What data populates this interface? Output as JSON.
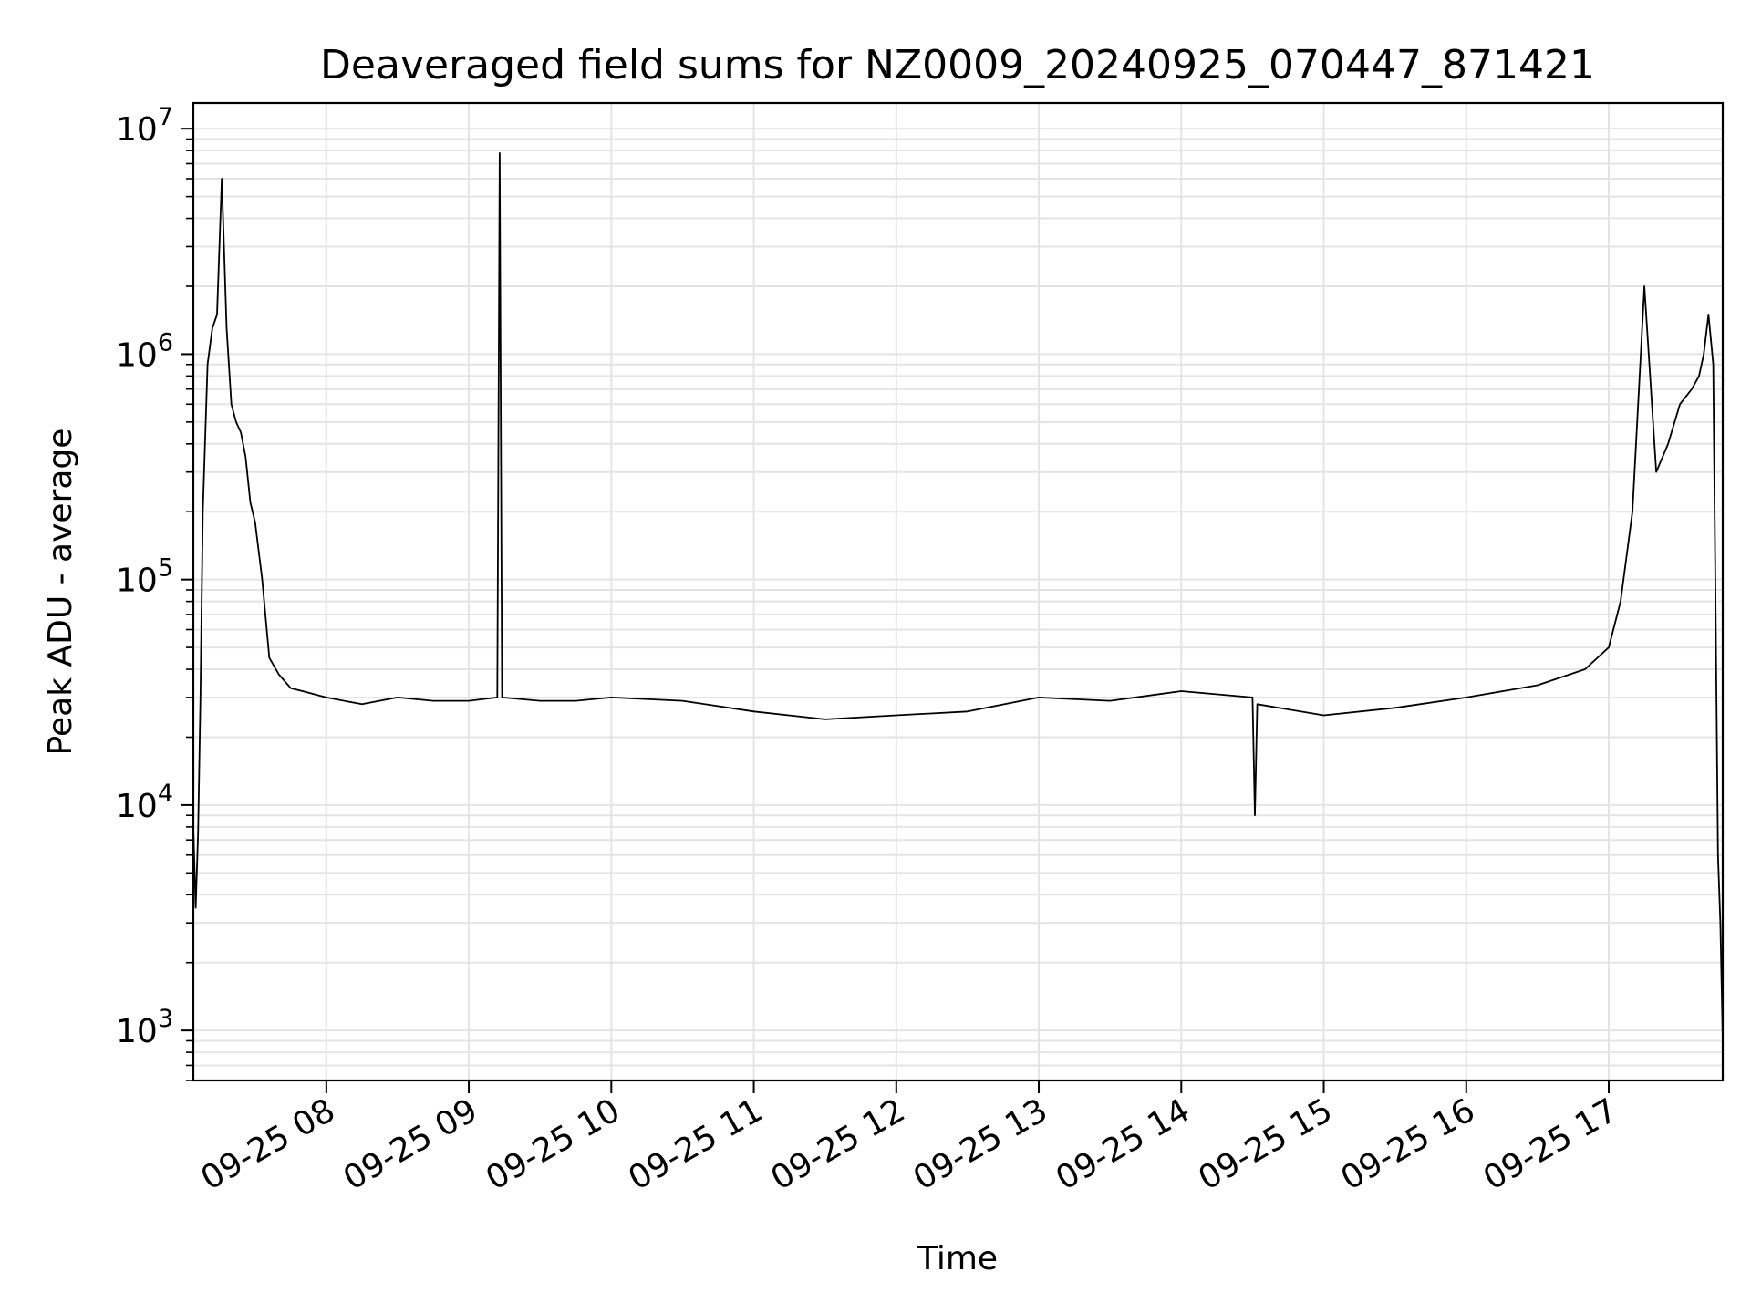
{
  "chart_data": {
    "type": "line",
    "title": "Deaveraged field sums for NZ0009_20240925_070447_871421",
    "xlabel": "Time",
    "ylabel": "Peak ADU - average",
    "yscale": "log",
    "xlim": [
      "2024-09-25 07:04",
      "2024-09-25 17:48"
    ],
    "ylim": [
      600,
      13000000
    ],
    "grid": true,
    "line_color": "#000000",
    "x_ticks": [
      "09-25 08",
      "09-25 09",
      "09-25 10",
      "09-25 11",
      "09-25 12",
      "09-25 13",
      "09-25 14",
      "09-25 15",
      "09-25 16",
      "09-25 17"
    ],
    "y_ticks": [
      {
        "base": "10",
        "exp": "3",
        "value": 1000
      },
      {
        "base": "10",
        "exp": "4",
        "value": 10000
      },
      {
        "base": "10",
        "exp": "5",
        "value": 100000
      },
      {
        "base": "10",
        "exp": "6",
        "value": 1000000
      },
      {
        "base": "10",
        "exp": "7",
        "value": 10000000
      }
    ],
    "series": [
      {
        "x": [
          "07:04",
          "07:05",
          "07:06",
          "07:07",
          "07:08",
          "07:10",
          "07:12",
          "07:14",
          "07:16",
          "07:18",
          "07:20",
          "07:22",
          "07:24",
          "07:26",
          "07:28",
          "07:30",
          "07:33",
          "07:36",
          "07:40",
          "07:45",
          "07:50",
          "08:00",
          "08:15",
          "08:30",
          "08:45",
          "09:00",
          "09:12",
          "09:13",
          "09:14",
          "09:30",
          "09:45",
          "10:00",
          "10:30",
          "11:00",
          "11:30",
          "12:00",
          "12:30",
          "13:00",
          "13:30",
          "14:00",
          "14:30",
          "14:31",
          "14:32",
          "15:00",
          "15:30",
          "16:00",
          "16:30",
          "16:50",
          "17:00",
          "17:05",
          "17:10",
          "17:15",
          "17:20",
          "17:25",
          "17:30",
          "17:35",
          "17:38",
          "17:40",
          "17:42",
          "17:44",
          "17:46",
          "17:47",
          "17:48"
        ],
        "values": [
          8000,
          3500,
          7500,
          30000,
          200000,
          900000,
          1300000,
          1500000,
          6000000,
          1300000,
          600000,
          500000,
          450000,
          350000,
          220000,
          180000,
          100000,
          45000,
          38000,
          33000,
          32000,
          30000,
          28000,
          30000,
          29000,
          29000,
          30000,
          7800000,
          30000,
          29000,
          29000,
          30000,
          29000,
          26000,
          24000,
          25000,
          26000,
          30000,
          29000,
          32000,
          30000,
          9000,
          28000,
          25000,
          27000,
          30000,
          34000,
          40000,
          50000,
          80000,
          200000,
          2000000,
          300000,
          400000,
          600000,
          700000,
          800000,
          1000000,
          1500000,
          900000,
          6000,
          3000,
          900
        ]
      }
    ]
  }
}
